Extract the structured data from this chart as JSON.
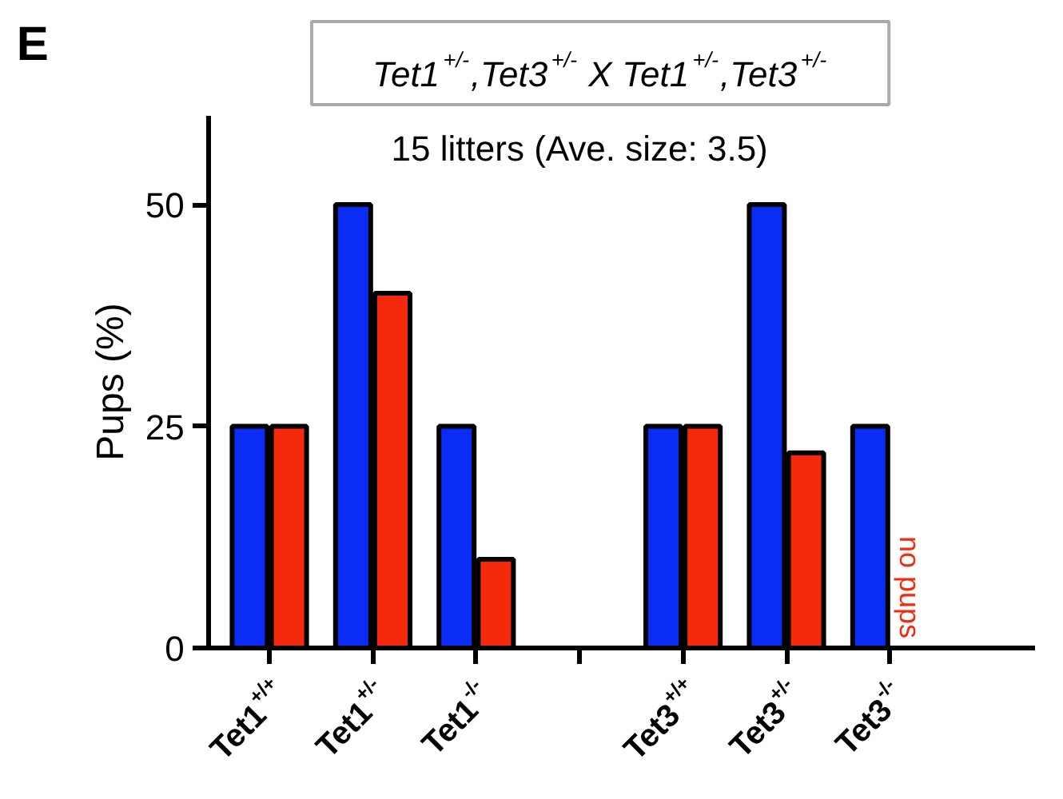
{
  "chart_data": {
    "type": "bar",
    "title": "Tet1$^{+/-}$,Tet3$^{+/-}$ X Tet1$^{+/-}$,Tet3$^{+/-}$",
    "subtitle": "15 litters (Ave. size: 3.5)",
    "ylabel": "Pups (%)",
    "categories": [
      "Tet1$^{+/+}$",
      "Tet1$^{+/-}$",
      "Tet1$^{-/-}$",
      null,
      "Tet3$^{+/+}$",
      "Tet3$^{+/-}$",
      "Tet3$^{-/-}$"
    ],
    "series": [
      {
        "color": "#0b2cf5",
        "values": [
          25,
          50,
          25,
          null,
          25,
          50,
          25
        ]
      },
      {
        "color": "#f5290b",
        "values": [
          25,
          40,
          10,
          null,
          25,
          22,
          null
        ]
      }
    ],
    "ylim": [
      0,
      60
    ],
    "yticks": [
      0,
      25,
      50
    ],
    "annotations": [
      "E",
      "no pups"
    ],
    "grid": false
  }
}
